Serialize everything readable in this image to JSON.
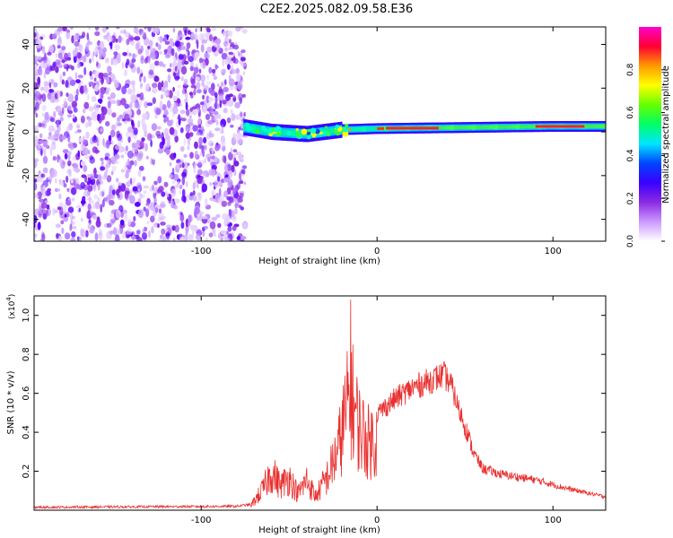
{
  "title": "C2E2.2025.082.09.58.E36",
  "chart_data": [
    {
      "type": "heatmap",
      "name": "spectrogram",
      "xlabel": "Height of straight line (km)",
      "ylabel": "Frequency (Hz)",
      "xlim": [
        -195,
        130
      ],
      "ylim": [
        -50,
        48
      ],
      "xticks": [
        -100,
        0,
        100
      ],
      "yticks": [
        -40,
        -20,
        0,
        20,
        40
      ],
      "noise_region": [
        -195,
        -75
      ],
      "signal_band": [
        {
          "x": -75,
          "f": 2
        },
        {
          "x": -60,
          "f": 0
        },
        {
          "x": -40,
          "f": -1
        },
        {
          "x": -20,
          "f": 1
        },
        {
          "x": 0,
          "f": 1.5
        },
        {
          "x": 50,
          "f": 2
        },
        {
          "x": 100,
          "f": 2.5
        },
        {
          "x": 130,
          "f": 2.5
        }
      ],
      "colorbar": {
        "label": "Normalized spectral amplitude",
        "range": [
          0,
          1
        ],
        "ticks": [
          0.0,
          0.2,
          0.4,
          0.6,
          0.8
        ],
        "colors": [
          "#ffffff",
          "#cc99ff",
          "#8a2be2",
          "#3a00ff",
          "#0044ff",
          "#00e5ff",
          "#00ff66",
          "#66ff00",
          "#ffff00",
          "#ff9900",
          "#ff0033",
          "#ff00cc"
        ]
      }
    },
    {
      "type": "line",
      "name": "snr",
      "xlabel": "Height of straight line (km)",
      "ylabel": "SNR (10 * v/v)",
      "yscale_label": "(x10",
      "yscale_exp": "4",
      "yscale_close": ")",
      "xlim": [
        -195,
        130
      ],
      "ylim": [
        0,
        1.1
      ],
      "xticks": [
        -100,
        0,
        100
      ],
      "yticks": [
        0.2,
        0.4,
        0.6,
        0.8,
        1.0
      ],
      "color": "#e8302f",
      "envelope": [
        {
          "x": -195,
          "y": 0.015
        },
        {
          "x": -80,
          "y": 0.02
        },
        {
          "x": -72,
          "y": 0.03
        },
        {
          "x": -65,
          "y": 0.15
        },
        {
          "x": -60,
          "y": 0.28
        },
        {
          "x": -55,
          "y": 0.18
        },
        {
          "x": -50,
          "y": 0.24
        },
        {
          "x": -45,
          "y": 0.12
        },
        {
          "x": -40,
          "y": 0.22
        },
        {
          "x": -35,
          "y": 0.1
        },
        {
          "x": -28,
          "y": 0.25
        },
        {
          "x": -22,
          "y": 0.45
        },
        {
          "x": -18,
          "y": 0.7
        },
        {
          "x": -15,
          "y": 0.85
        },
        {
          "x": -10,
          "y": 0.6
        },
        {
          "x": -5,
          "y": 0.5
        },
        {
          "x": 0,
          "y": 0.52
        },
        {
          "x": 10,
          "y": 0.6
        },
        {
          "x": 20,
          "y": 0.66
        },
        {
          "x": 30,
          "y": 0.7
        },
        {
          "x": 38,
          "y": 0.73
        },
        {
          "x": 42,
          "y": 0.68
        },
        {
          "x": 48,
          "y": 0.5
        },
        {
          "x": 55,
          "y": 0.3
        },
        {
          "x": 60,
          "y": 0.22
        },
        {
          "x": 70,
          "y": 0.19
        },
        {
          "x": 90,
          "y": 0.16
        },
        {
          "x": 110,
          "y": 0.11
        },
        {
          "x": 130,
          "y": 0.07
        }
      ]
    }
  ]
}
